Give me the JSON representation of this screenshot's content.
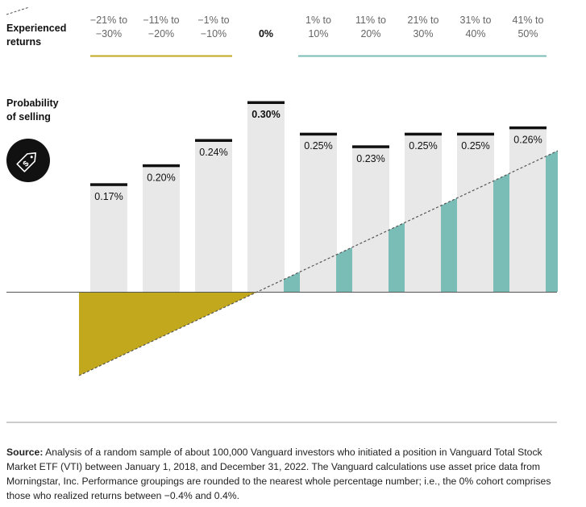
{
  "chart_data": {
    "type": "bar",
    "row_labels": {
      "experienced_returns": [
        "Experienced",
        "returns"
      ],
      "probability_of_selling": [
        "Probability",
        "of selling"
      ]
    },
    "categories": [
      [
        "−21% to",
        "−30%"
      ],
      [
        "−11% to",
        "−20%"
      ],
      [
        "−1% to",
        "−10%"
      ],
      [
        "0%"
      ],
      [
        "1% to",
        "10%"
      ],
      [
        "11% to",
        "20%"
      ],
      [
        "21% to",
        "30%"
      ],
      [
        "31% to",
        "40%"
      ],
      [
        "41% to",
        "50%"
      ]
    ],
    "values": [
      0.17,
      0.2,
      0.24,
      0.3,
      0.25,
      0.23,
      0.25,
      0.25,
      0.26
    ],
    "value_labels": [
      "0.17%",
      "0.20%",
      "0.24%",
      "0.30%",
      "0.25%",
      "0.23%",
      "0.25%",
      "0.25%",
      "0.26%"
    ],
    "highlight_index": 3,
    "ylim": [
      0,
      0.3
    ],
    "grid": false,
    "colors": {
      "bar_fill": "#e8e8e8",
      "bar_cap": "#111111",
      "negative_returns": "#c2a81c",
      "positive_returns": "#79bdb6",
      "trend_line": "#555555",
      "axis": "#555555",
      "icon_bg": "#111111"
    },
    "icon": "price-tag-dollar-icon",
    "legend_icon": "dashed-line-icon"
  },
  "source": {
    "label": "Source:",
    "text": "Analysis of a random sample of about 100,000 Vanguard investors who initiated a position in Vanguard Total Stock Market ETF (VTI) between January 1, 2018, and December 31, 2022. The Vanguard calculations use asset price data from Morningstar, Inc. Performance groupings are rounded to the nearest whole percentage number; i.e., the 0% cohort comprises those who realized returns between −0.4% and 0.4%."
  }
}
